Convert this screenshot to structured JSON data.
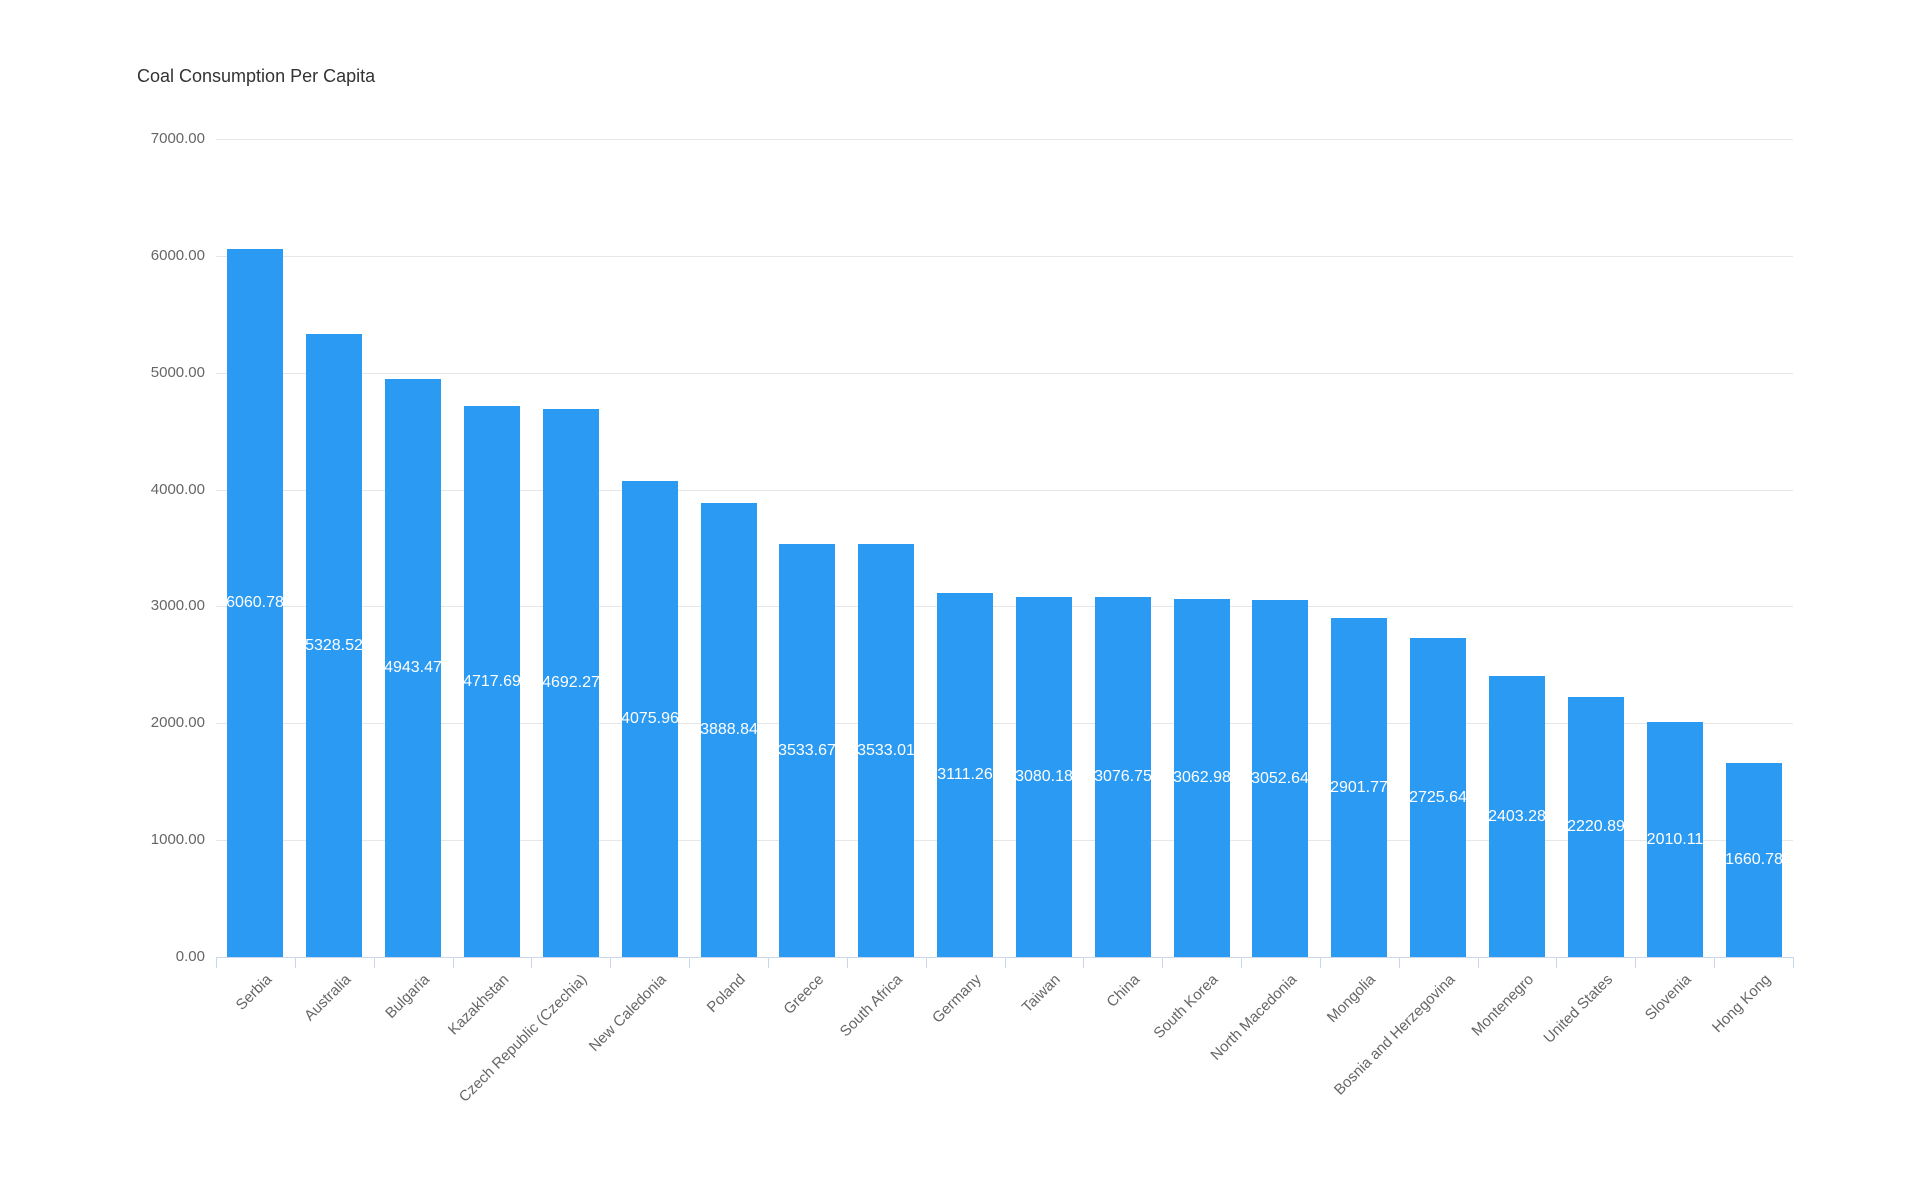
{
  "chart": {
    "title": "Coal Consumption Per Capita",
    "icons": {
      "menu": "hamburger-icon"
    }
  },
  "chart_data": {
    "type": "bar",
    "title": "Coal Consumption Per Capita",
    "xlabel": "",
    "ylabel": "",
    "categories": [
      "Serbia",
      "Australia",
      "Bulgaria",
      "Kazakhstan",
      "Czech Republic (Czechia)",
      "New Caledonia",
      "Poland",
      "Greece",
      "South Africa",
      "Germany",
      "Taiwan",
      "China",
      "South Korea",
      "North Macedonia",
      "Mongolia",
      "Bosnia and Herzegovina",
      "Montenegro",
      "United States",
      "Slovenia",
      "Hong Kong"
    ],
    "values": [
      6060.78,
      5328.52,
      4943.47,
      4717.69,
      4692.27,
      4075.96,
      3888.84,
      3533.67,
      3533.01,
      3111.26,
      3080.18,
      3076.75,
      3062.98,
      3052.64,
      2901.77,
      2725.64,
      2403.28,
      2220.89,
      2010.11,
      1660.78
    ],
    "value_labels": [
      "6060.78",
      "5328.52",
      "4943.47",
      "4717.69",
      "4692.27",
      "4075.96",
      "3888.84",
      "3533.67",
      "3533.01",
      "3111.26",
      "3080.18",
      "3076.75",
      "3062.98",
      "3052.64",
      "2901.77",
      "2725.64",
      "2403.28",
      "2220.89",
      "2010.11",
      "1660.78"
    ],
    "ylim": [
      0,
      7000
    ],
    "y_tick_values": [
      7000,
      6000,
      5000,
      4000,
      3000,
      2000,
      1000,
      0
    ],
    "y_tick_labels": [
      "7000.00",
      "6000.00",
      "5000.00",
      "4000.00",
      "3000.00",
      "2000.00",
      "1000.00",
      "0.00"
    ],
    "grid": true,
    "legend": false,
    "colors": {
      "bar": "#2B9AF2",
      "data_label": "#FFFFFF",
      "axis_label": "#666666",
      "title": "#333333",
      "gridline": "#E6E6E6",
      "axis_line": "#CCD6EB"
    }
  }
}
